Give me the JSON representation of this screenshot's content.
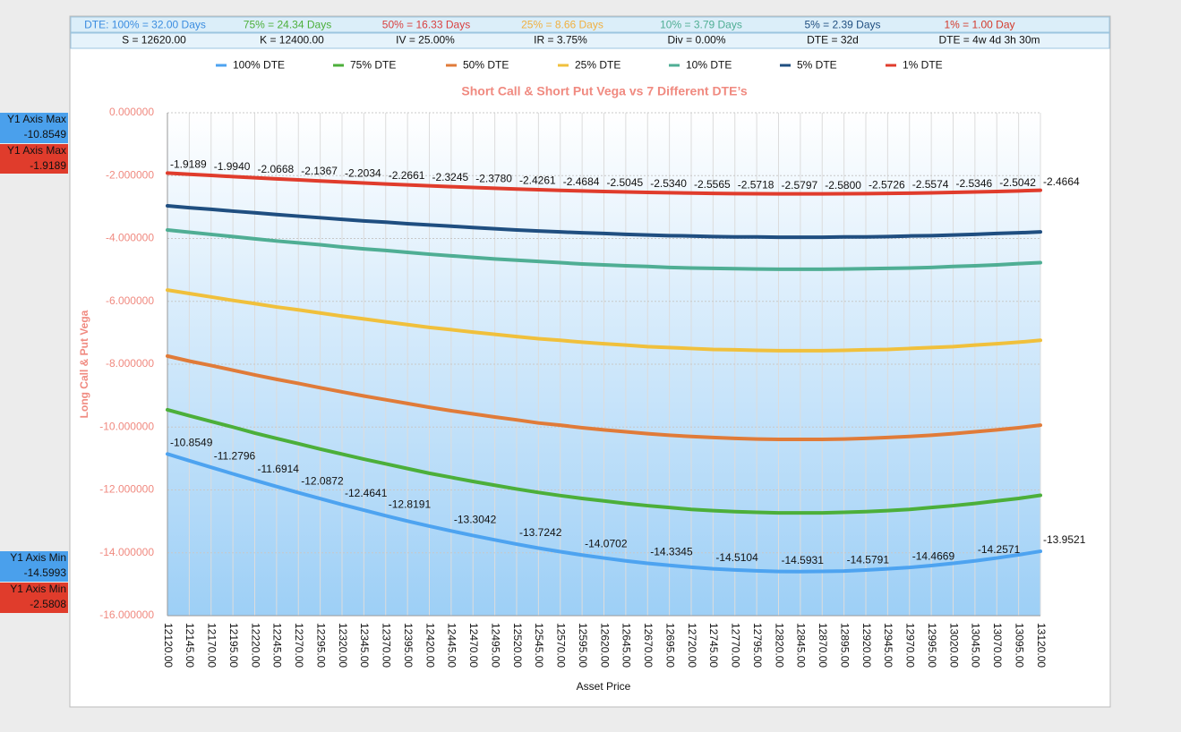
{
  "header": {
    "dte_row": [
      "DTE: 100% = 32.00 Days",
      "75% = 24.34 Days",
      "50% = 16.33 Days",
      "25% = 8.66 Days",
      "10% = 3.79 Days",
      "5% = 2.39 Days",
      "1% = 1.00 Day"
    ],
    "param_row": [
      "S = 12620.00",
      "K = 12400.00",
      "IV = 25.00%",
      "IR = 3.75%",
      "Div = 0.00%",
      "DTE = 32d",
      "DTE = 4w 4d 3h 30m"
    ]
  },
  "side_labels": [
    {
      "label": "Y1 Axis Max",
      "value": "-10.8549"
    },
    {
      "label": "Y1 Axis Max",
      "value": "-1.9189"
    },
    {
      "label": "Y1 Axis Min",
      "value": "-14.5993"
    },
    {
      "label": "Y1 Axis Min",
      "value": "-2.5808"
    }
  ],
  "chart_data": {
    "type": "line",
    "title": "Short Call & Short Put Vega vs 7 Different DTE’s",
    "x_label": "Asset Price",
    "y_label": "Long Call & Put Vega",
    "grid": true,
    "categories": [
      "12120.00",
      "12145.00",
      "12170.00",
      "12195.00",
      "12220.00",
      "12245.00",
      "12270.00",
      "12295.00",
      "12320.00",
      "12345.00",
      "12370.00",
      "12395.00",
      "12420.00",
      "12445.00",
      "12470.00",
      "12495.00",
      "12520.00",
      "12545.00",
      "12570.00",
      "12595.00",
      "12620.00",
      "12645.00",
      "12670.00",
      "12695.00",
      "12720.00",
      "12745.00",
      "12770.00",
      "12795.00",
      "12820.00",
      "12845.00",
      "12870.00",
      "12895.00",
      "12920.00",
      "12945.00",
      "12970.00",
      "12995.00",
      "13020.00",
      "13045.00",
      "13070.00",
      "13095.00",
      "13120.00"
    ],
    "ylim": [
      -16,
      0
    ],
    "yticks": [
      {
        "value": -16,
        "label": "-16.000000"
      },
      {
        "value": -14,
        "label": "-14.000000"
      },
      {
        "value": -12,
        "label": "-12.000000"
      },
      {
        "value": -10,
        "label": "-10.000000"
      },
      {
        "value": -8,
        "label": "-8.000000"
      },
      {
        "value": -6,
        "label": "-6.000000"
      },
      {
        "value": -4,
        "label": "-4.000000"
      },
      {
        "value": -2,
        "label": "-2.000000"
      },
      {
        "value": 0,
        "label": "0.000000"
      }
    ],
    "series": [
      {
        "name": "100% DTE",
        "color": "#4da3f0",
        "values": [
          -10.8549,
          -11.07,
          -11.2796,
          -11.487,
          -11.6914,
          -11.891,
          -12.0872,
          -12.277,
          -12.4641,
          -12.643,
          -12.8191,
          -12.99,
          -13.15,
          -13.3042,
          -13.45,
          -13.59,
          -13.7242,
          -13.85,
          -13.965,
          -14.0702,
          -14.165,
          -14.255,
          -14.3345,
          -14.4,
          -14.46,
          -14.5104,
          -14.545,
          -14.573,
          -14.5931,
          -14.5993,
          -14.592,
          -14.5791,
          -14.547,
          -14.51,
          -14.4669,
          -14.405,
          -14.335,
          -14.2571,
          -14.165,
          -14.063,
          -13.9521
        ],
        "value_labels": [
          "-10.8549",
          null,
          "-11.2796",
          null,
          "-11.6914",
          null,
          "-12.0872",
          null,
          "-12.4641",
          null,
          "-12.8191",
          null,
          null,
          "-13.3042",
          null,
          null,
          "-13.7242",
          null,
          null,
          "-14.0702",
          null,
          null,
          "-14.3345",
          null,
          null,
          "-14.5104",
          null,
          null,
          "-14.5931",
          null,
          null,
          "-14.5791",
          null,
          null,
          "-14.4669",
          null,
          null,
          "-14.2571",
          null,
          null,
          "-13.9521"
        ]
      },
      {
        "name": "75% DTE",
        "color": "#4caf3a",
        "values": [
          -9.45,
          -9.64,
          -9.82,
          -10.0,
          -10.19,
          -10.36,
          -10.53,
          -10.7,
          -10.86,
          -11.02,
          -11.17,
          -11.32,
          -11.47,
          -11.6,
          -11.73,
          -11.85,
          -11.97,
          -12.08,
          -12.18,
          -12.27,
          -12.35,
          -12.43,
          -12.5,
          -12.56,
          -12.62,
          -12.66,
          -12.69,
          -12.71,
          -12.73,
          -12.73,
          -12.73,
          -12.71,
          -12.69,
          -12.66,
          -12.62,
          -12.56,
          -12.5,
          -12.43,
          -12.35,
          -12.27,
          -12.17
        ]
      },
      {
        "name": "50% DTE",
        "color": "#e07b39",
        "values": [
          -7.74,
          -7.9,
          -8.04,
          -8.19,
          -8.34,
          -8.48,
          -8.61,
          -8.75,
          -8.88,
          -9.01,
          -9.13,
          -9.25,
          -9.37,
          -9.48,
          -9.58,
          -9.68,
          -9.77,
          -9.87,
          -9.94,
          -10.02,
          -10.09,
          -10.15,
          -10.21,
          -10.26,
          -10.3,
          -10.33,
          -10.36,
          -10.38,
          -10.39,
          -10.39,
          -10.39,
          -10.38,
          -10.36,
          -10.33,
          -10.3,
          -10.26,
          -10.21,
          -10.15,
          -10.09,
          -10.02,
          -9.94
        ]
      },
      {
        "name": "25% DTE",
        "color": "#f0c03c",
        "values": [
          -5.64,
          -5.75,
          -5.86,
          -5.97,
          -6.07,
          -6.18,
          -6.27,
          -6.37,
          -6.47,
          -6.56,
          -6.65,
          -6.74,
          -6.83,
          -6.9,
          -6.98,
          -7.05,
          -7.12,
          -7.19,
          -7.24,
          -7.3,
          -7.35,
          -7.39,
          -7.44,
          -7.47,
          -7.5,
          -7.53,
          -7.54,
          -7.56,
          -7.57,
          -7.57,
          -7.57,
          -7.56,
          -7.54,
          -7.53,
          -7.5,
          -7.47,
          -7.44,
          -7.39,
          -7.35,
          -7.3,
          -7.24
        ]
      },
      {
        "name": "10% DTE",
        "color": "#4fae94",
        "values": [
          -3.73,
          -3.8,
          -3.87,
          -3.94,
          -4.01,
          -4.08,
          -4.14,
          -4.2,
          -4.27,
          -4.33,
          -4.38,
          -4.44,
          -4.5,
          -4.55,
          -4.6,
          -4.65,
          -4.69,
          -4.73,
          -4.77,
          -4.81,
          -4.84,
          -4.87,
          -4.89,
          -4.92,
          -4.94,
          -4.95,
          -4.96,
          -4.97,
          -4.98,
          -4.98,
          -4.98,
          -4.97,
          -4.96,
          -4.95,
          -4.94,
          -4.92,
          -4.89,
          -4.87,
          -4.84,
          -4.8,
          -4.77
        ]
      },
      {
        "name": "5% DTE",
        "color": "#1f4e80",
        "values": [
          -2.96,
          -3.02,
          -3.07,
          -3.13,
          -3.18,
          -3.24,
          -3.29,
          -3.34,
          -3.39,
          -3.44,
          -3.48,
          -3.53,
          -3.57,
          -3.61,
          -3.65,
          -3.69,
          -3.73,
          -3.76,
          -3.79,
          -3.82,
          -3.84,
          -3.87,
          -3.89,
          -3.91,
          -3.92,
          -3.94,
          -3.95,
          -3.95,
          -3.96,
          -3.96,
          -3.96,
          -3.95,
          -3.95,
          -3.94,
          -3.92,
          -3.91,
          -3.89,
          -3.87,
          -3.84,
          -3.82,
          -3.79
        ]
      },
      {
        "name": "1% DTE",
        "color": "#e03c2c",
        "values": [
          -1.9189,
          -1.957,
          -1.994,
          -2.031,
          -2.0668,
          -2.102,
          -2.1367,
          -2.17,
          -2.2034,
          -2.235,
          -2.2661,
          -2.296,
          -2.3245,
          -2.352,
          -2.378,
          -2.403,
          -2.4261,
          -2.448,
          -2.4684,
          -2.487,
          -2.5045,
          -2.52,
          -2.534,
          -2.546,
          -2.5565,
          -2.565,
          -2.5718,
          -2.577,
          -2.5797,
          -2.5808,
          -2.58,
          -2.577,
          -2.5726,
          -2.566,
          -2.5574,
          -2.547,
          -2.5346,
          -2.52,
          -2.5042,
          -2.486,
          -2.4664
        ],
        "value_labels": [
          "-1.9189",
          null,
          "-1.9940",
          null,
          "-2.0668",
          null,
          "-2.1367",
          null,
          "-2.2034",
          null,
          "-2.2661",
          null,
          "-2.3245",
          null,
          "-2.3780",
          null,
          "-2.4261",
          null,
          "-2.4684",
          null,
          "-2.5045",
          null,
          "-2.5340",
          null,
          "-2.5565",
          null,
          "-2.5718",
          null,
          "-2.5797",
          null,
          "-2.5800",
          null,
          "-2.5726",
          null,
          "-2.5574",
          null,
          "-2.5346",
          null,
          "-2.5042",
          null,
          "-2.4664"
        ]
      }
    ]
  }
}
